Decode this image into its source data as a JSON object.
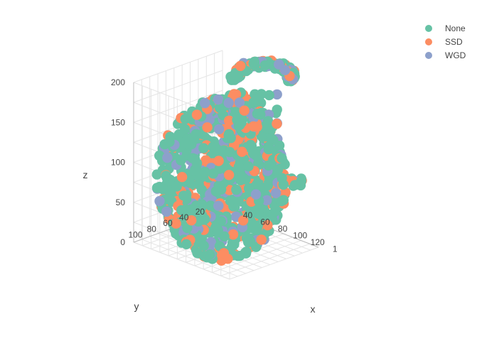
{
  "chart_data": {
    "type": "scatter3d",
    "title": "",
    "axes": {
      "x": {
        "label": "x",
        "ticks": [
          "40",
          "60",
          "80",
          "100",
          "120",
          "1"
        ],
        "range": [
          30,
          140
        ]
      },
      "y": {
        "label": "y",
        "ticks": [
          "20",
          "40",
          "60",
          "80",
          "100"
        ],
        "range": [
          10,
          120
        ]
      },
      "z": {
        "label": "z",
        "ticks": [
          "0",
          "50",
          "100",
          "150",
          "200"
        ],
        "range": [
          0,
          200
        ]
      }
    },
    "grid": true,
    "legend_position": "top-right",
    "series": [
      {
        "name": "None",
        "color": "#66c2a5"
      },
      {
        "name": "SSD",
        "color": "#fc8d62"
      },
      {
        "name": "WGD",
        "color": "#8da0cb"
      }
    ]
  }
}
